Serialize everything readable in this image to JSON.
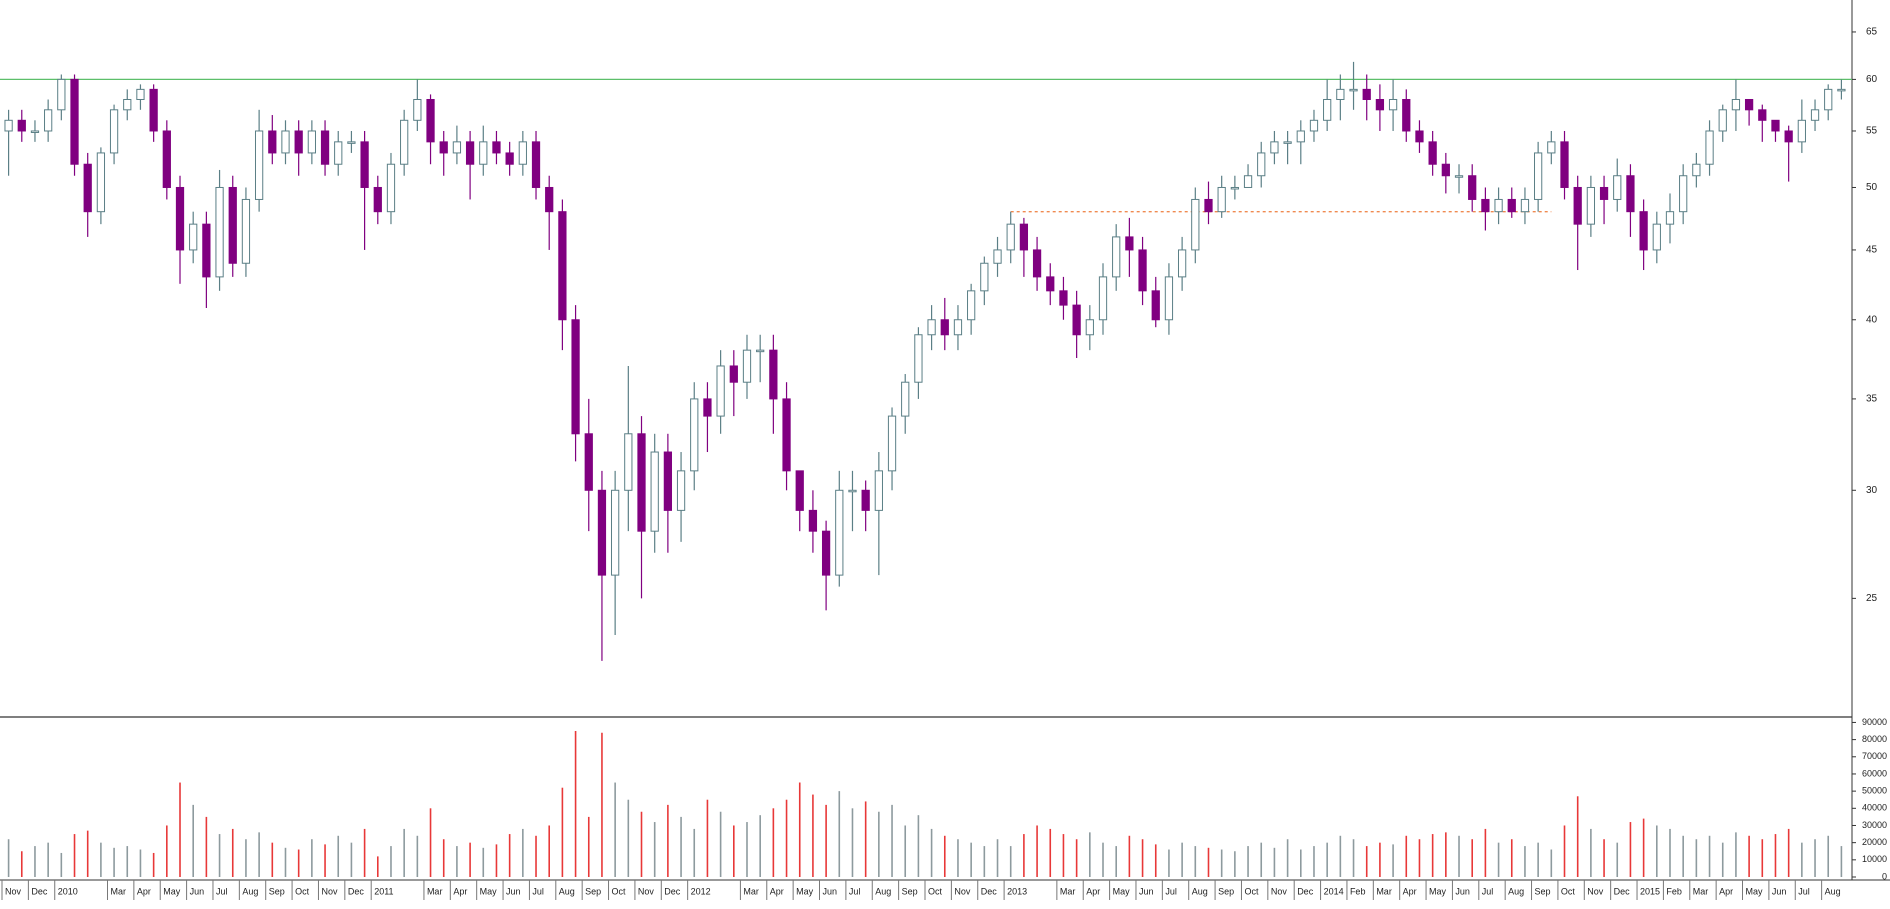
{
  "chart_data": {
    "type": "candlestick",
    "log_scale": true,
    "ylim": [
      20.5,
      68.6
    ],
    "yticks": [
      25,
      30,
      35,
      40,
      45,
      50,
      55,
      60,
      65
    ],
    "vlim": [
      0,
      92000
    ],
    "vticks": [
      0,
      10000,
      20000,
      30000,
      40000,
      50000,
      60000,
      70000,
      80000,
      90000
    ],
    "up_color": "#5b7f86",
    "down_color": "#800080",
    "volume_up_color": "#8d9a9e",
    "volume_down_color": "#e83838",
    "reference_lines": [
      {
        "value": 60,
        "color": "#5cbf6a",
        "style": "solid",
        "start": 0,
        "end": 139
      },
      {
        "value": 48,
        "color": "#f08a50",
        "style": "dashed",
        "start": 76,
        "end": 117
      }
    ],
    "categories": [
      "Nov",
      null,
      "Dec",
      null,
      "2010",
      null,
      null,
      null,
      "Mar",
      null,
      "Apr",
      null,
      "May",
      null,
      "Jun",
      null,
      "Jul",
      null,
      "Aug",
      null,
      "Sep",
      null,
      "Oct",
      null,
      "Nov",
      null,
      "Dec",
      null,
      "2011",
      null,
      null,
      null,
      "Mar",
      null,
      "Apr",
      null,
      "May",
      null,
      "Jun",
      null,
      "Jul",
      null,
      "Aug",
      null,
      "Sep",
      null,
      "Oct",
      null,
      "Nov",
      null,
      "Dec",
      null,
      "2012",
      null,
      null,
      null,
      "Mar",
      null,
      "Apr",
      null,
      "May",
      null,
      "Jun",
      null,
      "Jul",
      null,
      "Aug",
      null,
      "Sep",
      null,
      "Oct",
      null,
      "Nov",
      null,
      "Dec",
      null,
      "2013",
      null,
      null,
      null,
      "Mar",
      null,
      "Apr",
      null,
      "May",
      null,
      "Jun",
      null,
      "Jul",
      null,
      "Aug",
      null,
      "Sep",
      null,
      "Oct",
      null,
      "Nov",
      null,
      "Dec",
      null,
      "2014",
      null,
      "Feb",
      null,
      "Mar",
      null,
      "Apr",
      null,
      "May",
      null,
      "Jun",
      null,
      "Jul",
      null,
      "Aug",
      null,
      "Sep",
      null,
      "Oct",
      null,
      "Nov",
      null,
      "Dec",
      null,
      "2015",
      null,
      "Feb",
      null,
      "Mar",
      null,
      "Apr",
      null,
      "May",
      null,
      "Jun",
      null,
      "Jul",
      null,
      "Aug",
      null
    ],
    "open": [
      55,
      56,
      55,
      55,
      57,
      60,
      52,
      48,
      53,
      57,
      58,
      59,
      55,
      50,
      45,
      47,
      43,
      50,
      44,
      49,
      55,
      53,
      55,
      53,
      55,
      52,
      54,
      54,
      50,
      48,
      52,
      56,
      58,
      54,
      53,
      54,
      52,
      54,
      53,
      52,
      54,
      50,
      48,
      40,
      33,
      30,
      26,
      30,
      33,
      28,
      32,
      29,
      31,
      35,
      34,
      37,
      36,
      38,
      38,
      35,
      31,
      29,
      28,
      26,
      30,
      30,
      29,
      31,
      34,
      36,
      39,
      40,
      39,
      40,
      42,
      44,
      45,
      47,
      45,
      43,
      42,
      41,
      39,
      40,
      43,
      46,
      45,
      42,
      40,
      43,
      45,
      49,
      48,
      50,
      50,
      51,
      53,
      54,
      54,
      55,
      56,
      58,
      59,
      59,
      58,
      57,
      58,
      55,
      54,
      52,
      51,
      51,
      49,
      48,
      49,
      48,
      49,
      53,
      54,
      50,
      47,
      50,
      49,
      51,
      48,
      45,
      47,
      48,
      51,
      52,
      55,
      57,
      58,
      57,
      56,
      55,
      54,
      56,
      57,
      59
    ],
    "high": [
      57,
      57,
      56,
      58,
      60.5,
      60.5,
      53,
      53.5,
      57.5,
      59,
      59.5,
      59.5,
      56,
      51,
      48,
      48,
      51.5,
      51,
      50,
      57,
      56.5,
      56,
      56,
      56,
      56,
      55,
      55,
      55,
      51,
      53,
      57,
      60,
      58.5,
      55,
      55.5,
      55,
      55.5,
      55,
      54,
      55,
      55,
      51,
      49,
      41,
      35,
      31,
      31,
      37,
      34,
      33,
      33,
      32,
      36,
      36,
      38,
      38,
      39,
      39,
      39,
      36,
      31,
      30,
      28.5,
      31,
      31,
      30.5,
      32,
      34.5,
      36.5,
      39.5,
      41,
      41.5,
      41,
      42.5,
      44.5,
      46,
      48,
      47.5,
      46,
      44,
      43,
      42,
      41,
      44,
      47,
      47.5,
      46,
      43,
      44,
      46,
      50,
      50.5,
      51,
      51,
      52,
      54,
      55,
      55,
      56,
      57,
      60,
      60.5,
      61.8,
      60.5,
      59.5,
      60,
      59,
      56,
      55,
      53,
      52,
      52,
      50,
      50,
      50,
      50,
      54,
      55,
      55,
      51,
      51,
      51,
      52.5,
      52,
      49,
      48,
      49.5,
      52,
      53,
      56,
      57.5,
      60,
      58,
      57.5,
      56,
      55.5,
      58,
      58,
      59.5,
      60
    ],
    "low": [
      51,
      54,
      54,
      54,
      56,
      51,
      46,
      47,
      52,
      56,
      57,
      54,
      49,
      42.5,
      44,
      40.8,
      42,
      43,
      43,
      48,
      52,
      52,
      51,
      52,
      51,
      51,
      53,
      45,
      47,
      47,
      51,
      55,
      52,
      51,
      52,
      49,
      51,
      52,
      51,
      51,
      49,
      45,
      38,
      31.5,
      28,
      22.5,
      23.5,
      28,
      25,
      27,
      27,
      27.5,
      30,
      32,
      33,
      34,
      35,
      36,
      33,
      30,
      28,
      27,
      24.5,
      25.5,
      28,
      28,
      26,
      30,
      33,
      35,
      38,
      38,
      38,
      39,
      41,
      43,
      44,
      43,
      42,
      41,
      40,
      37.5,
      38,
      39,
      42,
      43,
      41,
      39.5,
      39,
      42,
      44,
      47,
      47.5,
      49,
      50,
      50,
      52,
      52,
      52,
      54,
      55,
      56,
      57,
      56,
      55,
      55,
      54,
      53,
      51,
      49.5,
      49.5,
      48,
      46.5,
      47,
      47.5,
      47,
      48,
      52,
      49,
      43.5,
      46,
      47,
      48,
      46,
      43.5,
      44,
      45.5,
      47,
      50,
      51,
      54,
      55,
      55.5,
      54,
      54,
      50.5,
      53,
      55,
      56,
      58
    ],
    "close": [
      56,
      55,
      55,
      57,
      60,
      52,
      48,
      53,
      57,
      58,
      59,
      55,
      50,
      45,
      47,
      43,
      50,
      44,
      49,
      55,
      53,
      55,
      53,
      55,
      52,
      54,
      54,
      50,
      48,
      52,
      56,
      58,
      54,
      53,
      54,
      52,
      54,
      53,
      52,
      54,
      50,
      48,
      40,
      33,
      30,
      26,
      30,
      33,
      28,
      32,
      29,
      31,
      35,
      34,
      37,
      36,
      38,
      38,
      35,
      31,
      29,
      28,
      26,
      30,
      30,
      29,
      31,
      34,
      36,
      39,
      40,
      39,
      40,
      42,
      44,
      45,
      47,
      45,
      43,
      42,
      41,
      39,
      40,
      43,
      46,
      45,
      42,
      40,
      43,
      45,
      49,
      48,
      50,
      50,
      51,
      53,
      54,
      54,
      55,
      56,
      58,
      59,
      59,
      58,
      57,
      58,
      55,
      54,
      52,
      51,
      51,
      49,
      48,
      49,
      48,
      49,
      53,
      54,
      50,
      47,
      50,
      49,
      51,
      48,
      45,
      47,
      48,
      51,
      52,
      55,
      57,
      58,
      57,
      56,
      55,
      54,
      56,
      57,
      59,
      59
    ],
    "volume": [
      22000,
      15000,
      18000,
      20000,
      14000,
      25000,
      27000,
      20000,
      17000,
      18000,
      16000,
      14000,
      30000,
      55000,
      42000,
      35000,
      25000,
      28000,
      22000,
      26000,
      20000,
      17000,
      16000,
      22000,
      19000,
      24000,
      20000,
      28000,
      12000,
      18000,
      28000,
      24000,
      40000,
      22000,
      18000,
      20000,
      17000,
      19000,
      25000,
      28000,
      24000,
      30000,
      52000,
      85000,
      35000,
      84000,
      55000,
      45000,
      38000,
      32000,
      42000,
      35000,
      28000,
      45000,
      38000,
      30000,
      32000,
      36000,
      40000,
      45000,
      55000,
      48000,
      42000,
      50000,
      40000,
      44000,
      38000,
      42000,
      30000,
      36000,
      28000,
      24000,
      22000,
      20000,
      18000,
      22000,
      18000,
      25000,
      30000,
      28000,
      25000,
      22000,
      26000,
      20000,
      18000,
      24000,
      22000,
      19000,
      16000,
      20000,
      18000,
      17000,
      16000,
      15000,
      18000,
      20000,
      17000,
      22000,
      16000,
      18000,
      20000,
      24000,
      22000,
      18000,
      20000,
      19000,
      24000,
      22000,
      25000,
      26000,
      24000,
      22000,
      28000,
      20000,
      22000,
      18000,
      20000,
      16000,
      30000,
      47000,
      28000,
      22000,
      20000,
      32000,
      34000,
      30000,
      28000,
      24000,
      22000,
      24000,
      20000,
      26000,
      24000,
      22000,
      25000,
      28000,
      20000,
      22000,
      24000,
      18000
    ]
  }
}
